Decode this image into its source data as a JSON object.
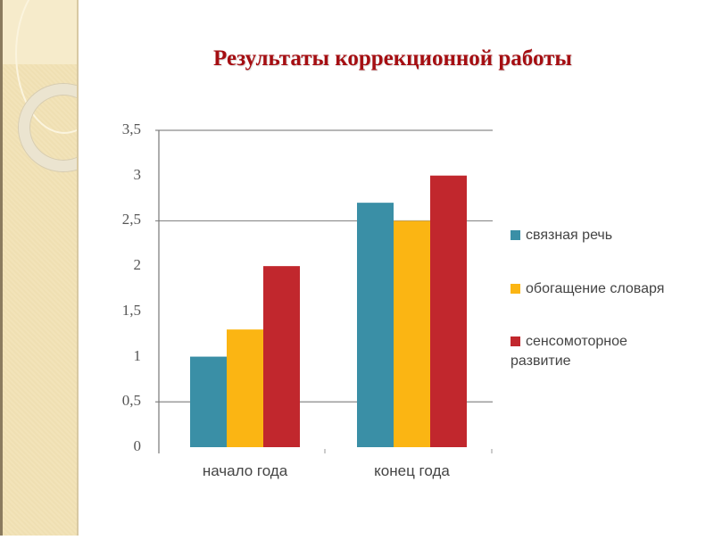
{
  "slide": {
    "title": "Результаты коррекционной работы",
    "background_accent": "#f2e3b9",
    "title_color": "#a50e12"
  },
  "chart_data": {
    "type": "bar",
    "title": "Результаты коррекционной работы",
    "categories": [
      "начало года",
      "конец года"
    ],
    "series": [
      {
        "name": "связная речь",
        "color": "#3a8fa6",
        "values": [
          1.0,
          2.7
        ]
      },
      {
        "name": "обогащение словаря",
        "color": "#fbb513",
        "values": [
          1.3,
          2.5
        ]
      },
      {
        "name": "сенсомоторное развитие",
        "color": "#c1272d",
        "values": [
          2.0,
          3.0
        ]
      }
    ],
    "xlabel": "",
    "ylabel": "",
    "ylim": [
      0,
      3.5
    ],
    "yticks": [
      "0",
      "0,5",
      "1",
      "1,5",
      "2",
      "2,5",
      "3",
      "3,5"
    ],
    "gridlines": [
      0.5,
      2.5,
      3.5
    ],
    "legend_position": "right"
  },
  "legend": {
    "items": [
      {
        "label": "связная речь",
        "color": "#3a8fa6"
      },
      {
        "label": "обогащение словаря",
        "color": "#fbb513"
      },
      {
        "label": "сенсомоторное развитие",
        "color": "#c1272d"
      }
    ]
  }
}
